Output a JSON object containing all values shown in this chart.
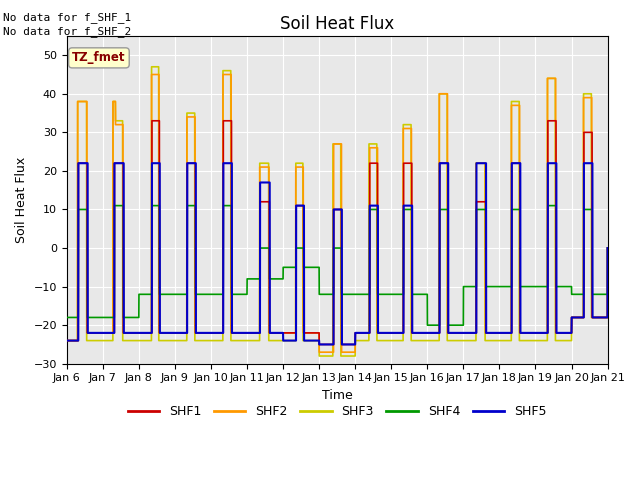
{
  "title": "Soil Heat Flux",
  "xlabel": "Time",
  "ylabel": "Soil Heat Flux",
  "ylim": [
    -30,
    55
  ],
  "yticks": [
    -30,
    -20,
    -10,
    0,
    10,
    20,
    30,
    40,
    50
  ],
  "background_color": "#e8e8e8",
  "no_data_text1": "No data for f_SHF_1",
  "no_data_text2": "No data for f_SHF_2",
  "tz_label": "TZ_fmet",
  "xtick_labels": [
    "Jan 6",
    "Jan 7",
    "Jan 8",
    "Jan 9",
    "Jan 10",
    "Jan 11",
    "Jan 12",
    "Jan 13",
    "Jan 14",
    "Jan 15",
    "Jan 16",
    "Jan 17",
    "Jan 18",
    "Jan 19",
    "Jan 20",
    "Jan 21"
  ],
  "shf1_color": "#cc0000",
  "shf2_color": "#ff9900",
  "shf3_color": "#cccc00",
  "shf4_color": "#009900",
  "shf5_color": "#0000cc"
}
